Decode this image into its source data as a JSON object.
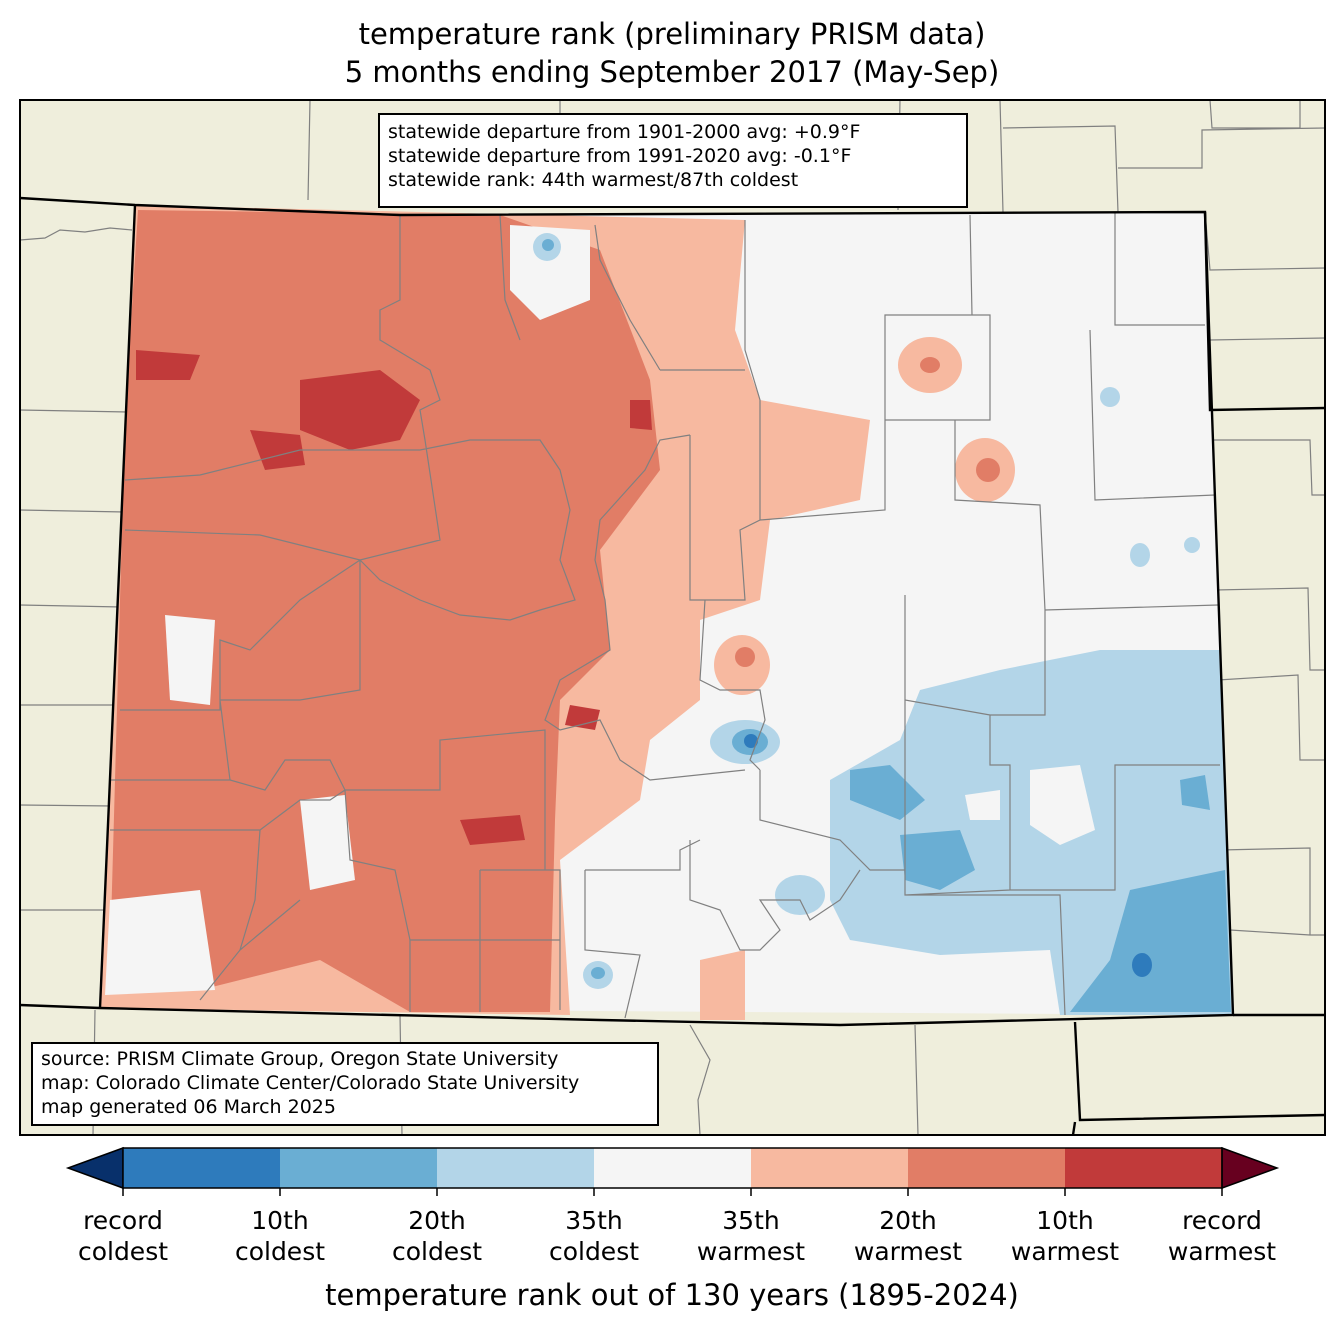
{
  "title": {
    "line1": "temperature rank (preliminary PRISM data)",
    "line2": "5 months ending September 2017 (May-Sep)"
  },
  "stats": {
    "departure_1901_2000": "statewide departure from 1901-2000 avg: +0.9°F",
    "departure_1991_2020": "statewide departure from 1991-2020 avg: -0.1°F",
    "rank": "statewide rank: 44th warmest/87th coldest"
  },
  "source": {
    "line1": "source: PRISM Climate Group, Oregon State University",
    "line2": "map: Colorado Climate Center/Colorado State University",
    "line3": "map generated 06 March 2025"
  },
  "colorbar": {
    "title": "temperature rank out of 130 years (1895-2024)",
    "ticks": [
      {
        "top": "record",
        "bottom": "coldest"
      },
      {
        "top": "10th",
        "bottom": "coldest"
      },
      {
        "top": "20th",
        "bottom": "coldest"
      },
      {
        "top": "35th",
        "bottom": "coldest"
      },
      {
        "top": "35th",
        "bottom": "warmest"
      },
      {
        "top": "20th",
        "bottom": "warmest"
      },
      {
        "top": "10th",
        "bottom": "warmest"
      },
      {
        "top": "record",
        "bottom": "warmest"
      }
    ],
    "colors": [
      "#08306b",
      "#2e7bbc",
      "#6aaed3",
      "#b3d5e8",
      "#f5f5f5",
      "#f7b9a0",
      "#e17d66",
      "#c13a3a",
      "#67001f"
    ]
  },
  "map_colors": {
    "land_outside": "#efeedc",
    "county_lines": "#808080",
    "state_border": "#000000"
  }
}
